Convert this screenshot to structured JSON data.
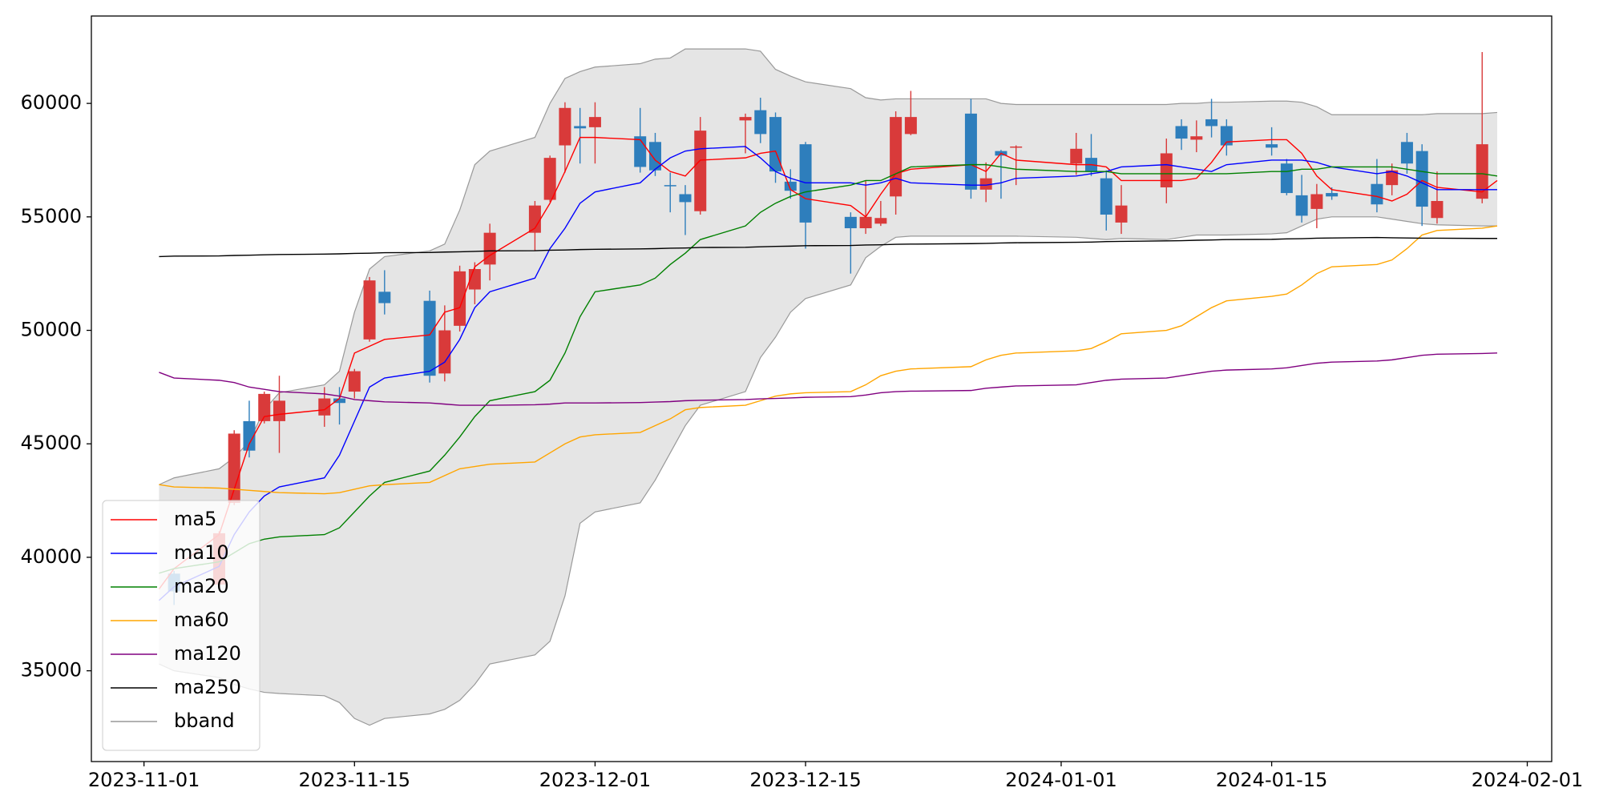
{
  "chart_data": {
    "type": "candlestick",
    "x": [
      "2023-11-02",
      "2023-11-03",
      "2023-11-06",
      "2023-11-07",
      "2023-11-08",
      "2023-11-09",
      "2023-11-10",
      "2023-11-13",
      "2023-11-14",
      "2023-11-15",
      "2023-11-16",
      "2023-11-17",
      "2023-11-20",
      "2023-11-21",
      "2023-11-22",
      "2023-11-23",
      "2023-11-24",
      "2023-11-27",
      "2023-11-28",
      "2023-11-29",
      "2023-11-30",
      "2023-12-01",
      "2023-12-04",
      "2023-12-05",
      "2023-12-06",
      "2023-12-07",
      "2023-12-08",
      "2023-12-11",
      "2023-12-12",
      "2023-12-13",
      "2023-12-14",
      "2023-12-15",
      "2023-12-18",
      "2023-12-19",
      "2023-12-20",
      "2023-12-21",
      "2023-12-22",
      "2023-12-26",
      "2023-12-27",
      "2023-12-28",
      "2023-12-29",
      "2024-01-02",
      "2024-01-03",
      "2024-01-04",
      "2024-01-05",
      "2024-01-08",
      "2024-01-09",
      "2024-01-10",
      "2024-01-11",
      "2024-01-12",
      "2024-01-15",
      "2024-01-16",
      "2024-01-17",
      "2024-01-18",
      "2024-01-19",
      "2024-01-22",
      "2024-01-23",
      "2024-01-24",
      "2024-01-25",
      "2024-01-26",
      "2024-01-29",
      "2024-01-30"
    ],
    "candles": {
      "up_color": "#d93a3a",
      "down_color": "#2e7ebc",
      "open": [
        null,
        39280,
        38800,
        42400,
        46000,
        46000,
        46000,
        46250,
        47000,
        47300,
        49600,
        51700,
        51300,
        48100,
        50200,
        51800,
        52900,
        54300,
        55750,
        58150,
        59000,
        58950,
        58550,
        58300,
        56400,
        56000,
        55250,
        59250,
        59700,
        59400,
        56550,
        58200,
        55000,
        54500,
        54700,
        55900,
        58650,
        59550,
        56200,
        57900,
        58050,
        57350,
        57600,
        56700,
        54750,
        56300,
        59000,
        58400,
        59300,
        59000,
        58200,
        57350,
        55950,
        55350,
        56050,
        56450,
        56400,
        58300,
        57900,
        54950,
        55800,
        null
      ],
      "high": [
        null,
        39400,
        41150,
        45600,
        46900,
        47300,
        48000,
        47500,
        47500,
        48300,
        52350,
        52650,
        51750,
        51100,
        52850,
        53000,
        54700,
        55700,
        57700,
        60050,
        59800,
        60050,
        59800,
        58700,
        56950,
        56400,
        59400,
        59550,
        60250,
        59600,
        57100,
        58300,
        55200,
        56600,
        55700,
        59650,
        60550,
        60200,
        57400,
        57950,
        58150,
        58700,
        58650,
        57050,
        56400,
        58450,
        59300,
        59250,
        60200,
        59300,
        58950,
        57550,
        56850,
        56450,
        56300,
        57550,
        57350,
        58700,
        58200,
        57000,
        62260,
        null
      ],
      "low": [
        null,
        37900,
        38700,
        42300,
        44400,
        45900,
        44600,
        45750,
        45850,
        47000,
        49500,
        50700,
        47700,
        47750,
        49950,
        51150,
        52200,
        53500,
        55650,
        56950,
        57350,
        57350,
        56950,
        56800,
        55200,
        54200,
        55100,
        57800,
        58250,
        56500,
        55800,
        53600,
        52500,
        54250,
        54600,
        55100,
        58600,
        55800,
        55650,
        55800,
        56400,
        56850,
        56800,
        54400,
        54250,
        55600,
        57950,
        57850,
        58500,
        57700,
        57700,
        55950,
        54750,
        54500,
        55750,
        55200,
        55950,
        56900,
        54600,
        54700,
        55600,
        null
      ],
      "close": [
        null,
        38500,
        41060,
        45450,
        44700,
        47200,
        46900,
        47000,
        46800,
        48200,
        52200,
        51200,
        48000,
        50000,
        52600,
        52700,
        54300,
        55500,
        57600,
        59800,
        58900,
        59400,
        57200,
        57050,
        56350,
        55650,
        58800,
        59400,
        58650,
        57000,
        56150,
        54750,
        54500,
        55000,
        54950,
        59400,
        59400,
        56200,
        56700,
        57700,
        58100,
        58000,
        57000,
        55100,
        55500,
        57800,
        58450,
        58550,
        59000,
        58150,
        58050,
        56050,
        55050,
        56000,
        55900,
        55550,
        57050,
        57350,
        55450,
        55700,
        58200,
        null
      ]
    },
    "series": [
      {
        "name": "ma5",
        "color": "#ff0000",
        "values": [
          38600,
          39500,
          41000,
          43000,
          45000,
          46200,
          46300,
          46500,
          47000,
          49000,
          49300,
          49600,
          49800,
          50800,
          51000,
          52800,
          53300,
          54500,
          55600,
          57000,
          58500,
          58500,
          58400,
          57500,
          57000,
          56800,
          57500,
          57600,
          57800,
          57900,
          56200,
          55800,
          55500,
          55000,
          56000,
          56900,
          57100,
          57300,
          57000,
          57800,
          57500,
          57300,
          57300,
          57200,
          56600,
          56600,
          56600,
          56700,
          57400,
          58300,
          58400,
          58400,
          57800,
          56800,
          56200,
          55900,
          55700,
          56000,
          56600,
          56300,
          56100,
          56600
        ]
      },
      {
        "name": "ma10",
        "color": "#0000ff",
        "values": [
          38100,
          38700,
          39600,
          41000,
          42000,
          42700,
          43100,
          43500,
          44500,
          46000,
          47500,
          47900,
          48200,
          48600,
          49600,
          51000,
          51700,
          52300,
          53600,
          54500,
          55600,
          56100,
          56500,
          57100,
          57600,
          57900,
          58000,
          58100,
          57600,
          57000,
          56700,
          56500,
          56500,
          56400,
          56500,
          56700,
          56500,
          56400,
          56400,
          56500,
          56700,
          56800,
          56900,
          57000,
          57200,
          57300,
          57200,
          57100,
          57000,
          57300,
          57500,
          57500,
          57500,
          57400,
          57200,
          56900,
          57000,
          56800,
          56500,
          56200,
          56200,
          56200
        ]
      },
      {
        "name": "ma20",
        "color": "#008000",
        "values": [
          39300,
          39500,
          39800,
          40200,
          40600,
          40800,
          40900,
          41000,
          41300,
          42000,
          42700,
          43300,
          43800,
          44500,
          45300,
          46200,
          46900,
          47300,
          47800,
          49000,
          50600,
          51700,
          52000,
          52300,
          52900,
          53400,
          54000,
          54600,
          55200,
          55600,
          55900,
          56100,
          56400,
          56600,
          56600,
          56900,
          57200,
          57300,
          57300,
          57200,
          57100,
          57000,
          57000,
          57000,
          56900,
          56900,
          56900,
          56900,
          56900,
          56900,
          57000,
          57000,
          57100,
          57100,
          57200,
          57200,
          57200,
          57100,
          57000,
          56900,
          56900,
          56800
        ]
      },
      {
        "name": "ma60",
        "color": "#ffa500",
        "values": [
          43200,
          43100,
          43050,
          43000,
          42950,
          42900,
          42850,
          42800,
          42850,
          43000,
          43150,
          43200,
          43300,
          43600,
          43900,
          44000,
          44100,
          44200,
          44600,
          45000,
          45300,
          45400,
          45500,
          45800,
          46100,
          46500,
          46600,
          46700,
          46900,
          47100,
          47200,
          47250,
          47300,
          47600,
          48000,
          48200,
          48300,
          48400,
          48700,
          48900,
          49000,
          49100,
          49200,
          49500,
          49850,
          50000,
          50200,
          50600,
          51000,
          51300,
          51500,
          51600,
          52000,
          52500,
          52800,
          52900,
          53100,
          53600,
          54200,
          54400,
          54500,
          54600
        ]
      },
      {
        "name": "ma120",
        "color": "#800080",
        "values": [
          48150,
          47900,
          47800,
          47700,
          47500,
          47400,
          47300,
          47200,
          47100,
          46950,
          46900,
          46850,
          46800,
          46750,
          46700,
          46700,
          46700,
          46720,
          46750,
          46800,
          46800,
          46800,
          46820,
          46840,
          46860,
          46900,
          46920,
          46950,
          46980,
          47000,
          47020,
          47050,
          47080,
          47150,
          47250,
          47300,
          47320,
          47350,
          47450,
          47500,
          47550,
          47600,
          47700,
          47800,
          47850,
          47900,
          48000,
          48100,
          48200,
          48250,
          48300,
          48350,
          48450,
          48550,
          48600,
          48650,
          48700,
          48800,
          48900,
          48950,
          48980,
          49000
        ]
      },
      {
        "name": "ma250",
        "color": "#000000",
        "values": [
          53250,
          53270,
          53280,
          53300,
          53310,
          53330,
          53340,
          53360,
          53370,
          53390,
          53400,
          53420,
          53430,
          53450,
          53460,
          53480,
          53500,
          53510,
          53530,
          53540,
          53560,
          53570,
          53590,
          53600,
          53620,
          53630,
          53650,
          53660,
          53680,
          53700,
          53710,
          53730,
          53740,
          53760,
          53770,
          53790,
          53800,
          53820,
          53830,
          53850,
          53860,
          53880,
          53890,
          53910,
          53920,
          53940,
          53950,
          53970,
          53980,
          54000,
          54010,
          54030,
          54040,
          54060,
          54070,
          54090,
          54080,
          54070,
          54060,
          54060,
          54050,
          54050
        ]
      }
    ],
    "bband": {
      "name": "bband",
      "color": "#999999",
      "fill": "#e5e5e5",
      "upper": [
        43200,
        43500,
        43900,
        44400,
        45100,
        46500,
        47250,
        47600,
        48200,
        50800,
        52700,
        53250,
        53500,
        53800,
        55300,
        57300,
        57900,
        58500,
        60000,
        61100,
        61400,
        61600,
        61750,
        61950,
        62000,
        62400,
        62400,
        62400,
        62300,
        61500,
        61200,
        60950,
        60650,
        60250,
        60150,
        60200,
        60200,
        60200,
        60200,
        60000,
        59950,
        59950,
        59950,
        59950,
        59950,
        59950,
        60000,
        60000,
        60050,
        60050,
        60100,
        60100,
        60050,
        59850,
        59500,
        59500,
        59500,
        59500,
        59500,
        59550,
        59550,
        59600
      ],
      "lower": [
        35300,
        35000,
        34700,
        34400,
        34200,
        34050,
        34000,
        33900,
        33600,
        32900,
        32600,
        32900,
        33100,
        33300,
        33700,
        34400,
        35300,
        35700,
        36300,
        38300,
        41500,
        42000,
        42400,
        43400,
        44600,
        45800,
        46700,
        47300,
        48800,
        49700,
        50800,
        51400,
        52000,
        53200,
        53700,
        54100,
        54150,
        54150,
        54150,
        54150,
        54150,
        54100,
        54050,
        54000,
        54050,
        54000,
        54100,
        54200,
        54200,
        54200,
        54250,
        54300,
        54600,
        54900,
        55000,
        55000,
        54900,
        54800,
        54700,
        54650,
        54600,
        54600
      ]
    },
    "xlim": [
      "2023-10-28T12:00:00Z",
      "2024-02-02T15:00:00Z"
    ],
    "xticks": [
      "2023-11-01",
      "2023-11-15",
      "2023-12-01",
      "2023-12-15",
      "2024-01-01",
      "2024-01-15",
      "2024-02-01"
    ],
    "ylim": [
      31000,
      63850
    ],
    "yticks": [
      35000,
      40000,
      45000,
      50000,
      55000,
      60000
    ],
    "grid": false,
    "legend": "lower left"
  }
}
